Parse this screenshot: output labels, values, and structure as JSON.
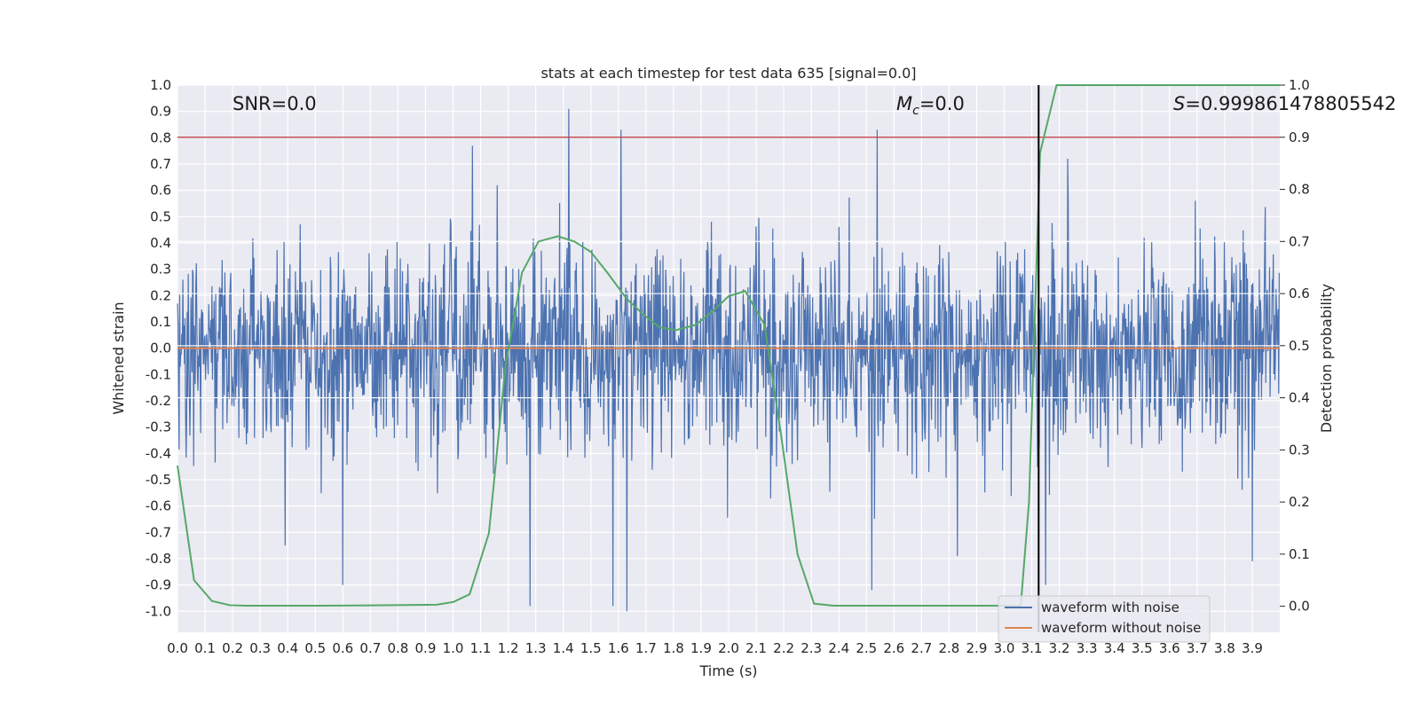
{
  "chart_data": {
    "type": "line",
    "title": "stats at each timestep for test data 635 [signal=0.0]",
    "xlabel": "Time (s)",
    "ylabel": "Whitened strain",
    "y2label": "Detection probability",
    "xlim": [
      0.0,
      4.0
    ],
    "ylim": [
      -1.08,
      1.0
    ],
    "y2lim": [
      -0.05,
      1.0
    ],
    "x_ticks": [
      "0.0",
      "0.1",
      "0.2",
      "0.3",
      "0.4",
      "0.5",
      "0.6",
      "0.7",
      "0.8",
      "0.9",
      "1.0",
      "1.1",
      "1.2",
      "1.3",
      "1.4",
      "1.5",
      "1.6",
      "1.7",
      "1.8",
      "1.9",
      "2.0",
      "2.1",
      "2.2",
      "2.3",
      "2.4",
      "2.5",
      "2.6",
      "2.7",
      "2.8",
      "2.9",
      "3.0",
      "3.1",
      "3.2",
      "3.3",
      "3.4",
      "3.5",
      "3.6",
      "3.7",
      "3.8",
      "3.9"
    ],
    "y_ticks": [
      "1.0",
      "0.9",
      "0.8",
      "0.7",
      "0.6",
      "0.5",
      "0.4",
      "0.3",
      "0.2",
      "0.1",
      "0.0",
      "-0.1",
      "-0.2",
      "-0.3",
      "-0.4",
      "-0.5",
      "-0.6",
      "-0.7",
      "-0.8",
      "-0.9",
      "-1.0"
    ],
    "y2_ticks": [
      "0.0",
      "0.1",
      "0.2",
      "0.3",
      "0.4",
      "0.5",
      "0.6",
      "0.7",
      "0.8",
      "0.9",
      "1.0"
    ],
    "grid": true,
    "legend_position": "bottom-right",
    "annotations": {
      "snr": "SNR=0.0",
      "mc_symbol": "M",
      "mc_sub": "c",
      "mc_value": "=0.0",
      "s_symbol": "S",
      "s_value": "=0.999861478805542"
    },
    "threshold": 0.9,
    "marker_time": 3.125,
    "series": [
      {
        "name": "waveform with noise",
        "color": "#4c72b0",
        "axis": "left",
        "kind": "noise",
        "sample_rate": 512,
        "typical_amplitude": 0.32,
        "spike_peaks": [
          {
            "x": 1.07,
            "y": 0.77
          },
          {
            "x": 1.42,
            "y": 0.91
          },
          {
            "x": 1.61,
            "y": 0.83
          },
          {
            "x": 2.54,
            "y": 0.83
          },
          {
            "x": 3.23,
            "y": 0.72
          },
          {
            "x": 1.16,
            "y": 0.62
          },
          {
            "x": 1.28,
            "y": -0.98
          },
          {
            "x": 1.63,
            "y": -1.0
          },
          {
            "x": 1.58,
            "y": -0.98
          },
          {
            "x": 2.52,
            "y": -0.92
          },
          {
            "x": 3.15,
            "y": -0.9
          },
          {
            "x": 0.6,
            "y": -0.9
          },
          {
            "x": 2.83,
            "y": -0.79
          },
          {
            "x": 3.9,
            "y": -0.81
          },
          {
            "x": 0.39,
            "y": -0.75
          }
        ]
      },
      {
        "name": "waveform without noise",
        "color": "#dd8452",
        "axis": "left",
        "x": [
          0.0,
          4.0
        ],
        "y": [
          0.0,
          0.0
        ]
      },
      {
        "name": "detection probability",
        "color": "#55a868",
        "axis": "right",
        "x": [
          0.0,
          0.06,
          0.125,
          0.19,
          0.25,
          0.5,
          0.75,
          0.94,
          1.0,
          1.06,
          1.13,
          1.19,
          1.25,
          1.31,
          1.38,
          1.44,
          1.5,
          1.56,
          1.63,
          1.69,
          1.75,
          1.81,
          1.88,
          1.94,
          2.0,
          2.06,
          2.13,
          2.19,
          2.25,
          2.31,
          2.38,
          2.5,
          3.06,
          3.09,
          3.13,
          3.19,
          3.5,
          4.0
        ],
        "y": [
          0.27,
          0.05,
          0.01,
          0.002,
          0.001,
          0.001,
          0.002,
          0.003,
          0.008,
          0.023,
          0.14,
          0.46,
          0.64,
          0.7,
          0.71,
          0.7,
          0.68,
          0.64,
          0.59,
          0.56,
          0.535,
          0.53,
          0.54,
          0.565,
          0.595,
          0.605,
          0.54,
          0.33,
          0.1,
          0.005,
          0.001,
          0.001,
          0.001,
          0.2,
          0.87,
          1.0,
          1.0,
          1.0
        ]
      }
    ]
  }
}
